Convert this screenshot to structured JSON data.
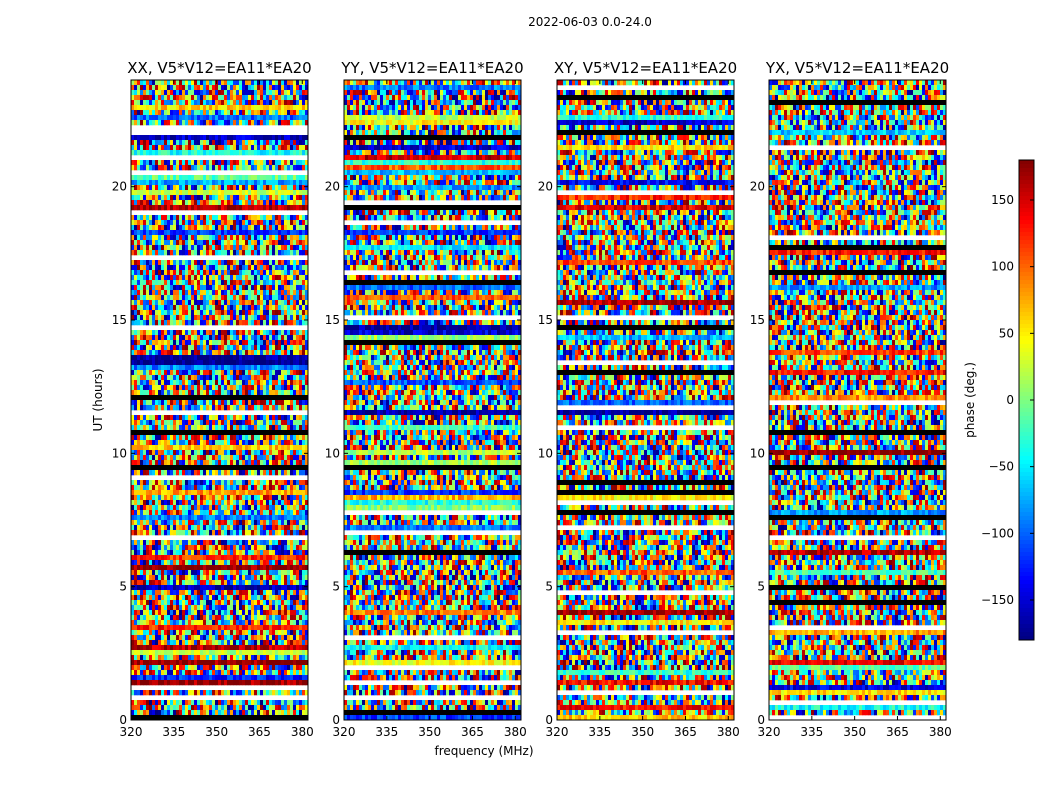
{
  "suptitle": "2022-06-03 0.0-24.0",
  "chart_data": {
    "type": "heatmap",
    "title": "2022-06-03 0.0-24.0",
    "xlabel": "frequency (MHz)",
    "ylabel": "UT (hours)",
    "xlim": [
      320,
      382
    ],
    "ylim": [
      0,
      24
    ],
    "x_ticks": [
      320,
      335,
      350,
      365,
      380
    ],
    "y_ticks": [
      0,
      5,
      10,
      15,
      20
    ],
    "colormap": "jet",
    "colorbar": {
      "label": "phase (deg.)",
      "range": [
        -180,
        180
      ],
      "ticks": [
        -150,
        -100,
        -50,
        0,
        50,
        100,
        150
      ],
      "tick_labels": [
        "−150",
        "−100",
        "−50",
        "0",
        "50",
        "100",
        "150"
      ]
    },
    "panels": [
      {
        "title": "XX, V5*V12=EA11*EA20"
      },
      {
        "title": "YY, V5*V12=EA11*EA20"
      },
      {
        "title": "XY, V5*V12=EA11*EA20"
      },
      {
        "title": "YX, V5*V12=EA11*EA20"
      }
    ]
  }
}
